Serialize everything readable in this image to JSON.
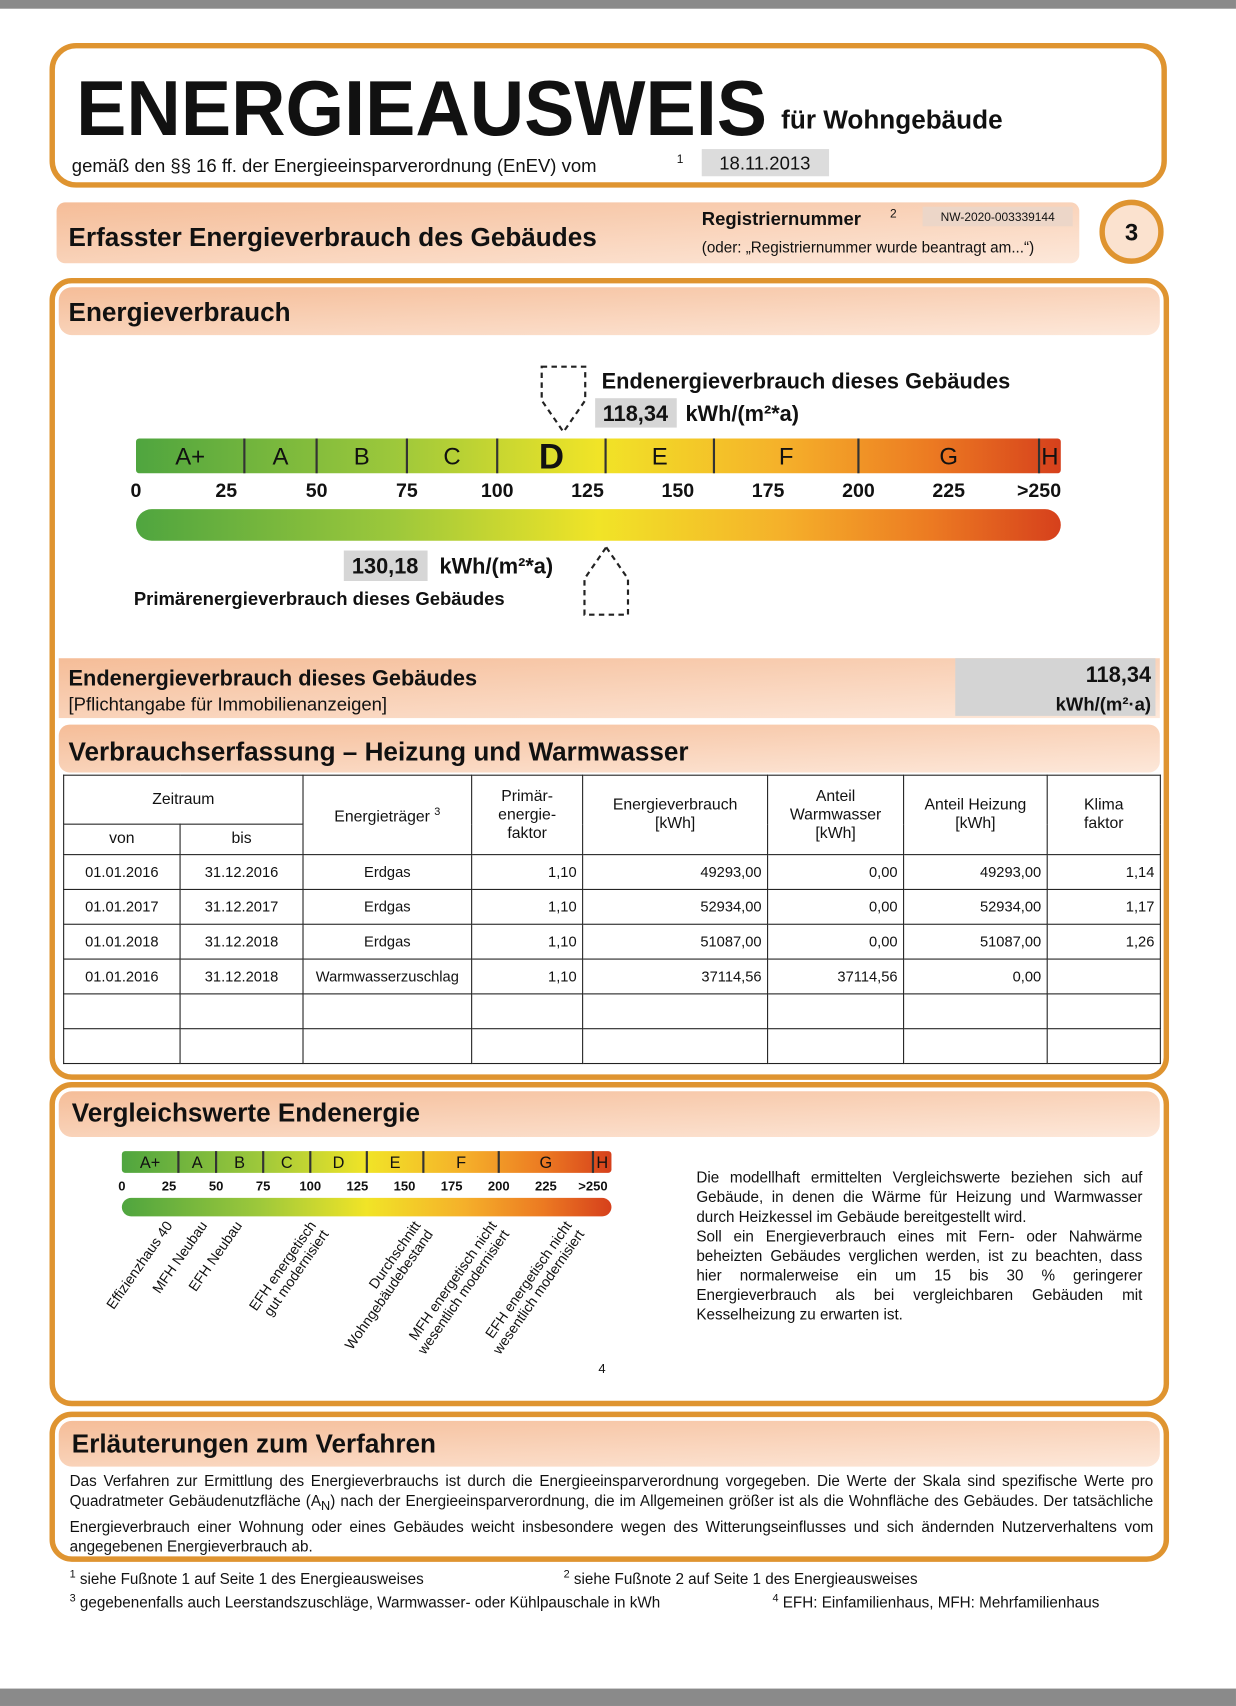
{
  "header": {
    "title": "ENERGIEAUSWEIS",
    "subtitle": "für Wohngebäude",
    "basis": "gemäß den §§ 16 ff. der Energieeinsparverordnung (EnEV) vom",
    "basis_note": "1",
    "date": "18.11.2013"
  },
  "section": {
    "title": "Erfasster Energieverbrauch des Gebäudes",
    "registration_label": "Registriernummer",
    "registration_note": "2",
    "registration_number": "NW-2020-003339144",
    "registration_hint": "(oder: „Registriernummer wurde beantragt am...“)",
    "page": "3"
  },
  "energy": {
    "title": "Energieverbrauch",
    "final_label": "Endenergieverbrauch dieses Gebäudes",
    "final_value": {
      "value": 118.34,
      "label": "118,34"
    },
    "unit": "kWh/(m²*a)",
    "primary_value": {
      "value": 130.18,
      "label": "130,18"
    },
    "primary_label": "Primärenergieverbrauch dieses Gebäudes",
    "classes": [
      "A+",
      "A",
      "B",
      "C",
      "D",
      "E",
      "F",
      "G",
      "H"
    ],
    "class_limits": [
      0,
      30,
      50,
      75,
      100,
      130,
      160,
      200,
      250
    ],
    "scale": [
      0,
      25,
      50,
      75,
      100,
      125,
      150,
      175,
      200,
      225,
      {
        "value": 250,
        "label": ">250"
      }
    ]
  },
  "summary": {
    "label": "Endenergieverbrauch dieses Gebäudes",
    "note": "[Pflichtangabe für Immobilienanzeigen]",
    "value": "118,34",
    "unit": "kWh/(m²·a)"
  },
  "consumption": {
    "title": "Verbrauchserfassung – Heizung und Warmwasser",
    "headers": {
      "period": "Zeitraum",
      "from": "von",
      "to": "bis",
      "carrier": "Energieträger",
      "carrier_note": "3",
      "factor": "Primär-\nenergie-\nfaktor",
      "energy": "Energieverbrauch\n[kWh]",
      "water": "Anteil\nWarmwasser\n[kWh]",
      "heating": "Anteil Heizung\n[kWh]",
      "climate": "Klima\nfaktor"
    },
    "rows": [
      [
        "01.01.2016",
        "31.12.2016",
        "Erdgas",
        "1,10",
        "49293,00",
        "0,00",
        "49293,00",
        "1,14"
      ],
      [
        "01.01.2017",
        "31.12.2017",
        "Erdgas",
        "1,10",
        "52934,00",
        "0,00",
        "52934,00",
        "1,17"
      ],
      [
        "01.01.2018",
        "31.12.2018",
        "Erdgas",
        "1,10",
        "51087,00",
        "0,00",
        "51087,00",
        "1,26"
      ],
      [
        "01.01.2016",
        "31.12.2018",
        "Warmwasserzuschlag",
        "1,10",
        "37114,56",
        "37114,56",
        "0,00"
      ]
    ]
  },
  "comparison": {
    "title": "Vergleichswerte Endenergie",
    "references": [
      "Effizienzhaus 40",
      "MFH Neubau",
      "EFH Neubau",
      "EFH energetisch\ngut modernisiert",
      "Durchschnitt\nWohngebäudebestand",
      "MFH energetisch nicht\nwesentlich modernisiert",
      "EFH energetisch nicht\nwesentlich modernisiert"
    ],
    "note": "4",
    "text": [
      "Die modellhaft ermittelten Vergleichswerte beziehen sich auf Gebäude, in denen die Wärme für Heizung und Warmwasser durch Heizkessel im Gebäude bereitgestellt wird.",
      "Soll ein Energieverbrauch eines mit Fern- oder Nahwärme beheizten Gebäudes verglichen werden, ist zu beachten, dass hier normalerweise ein um 15 bis 30 % geringerer Energieverbrauch als bei vergleichbaren Gebäuden mit Kesselheizung zu erwarten ist."
    ]
  },
  "explanation": {
    "title": "Erläuterungen zum Verfahren",
    "text": [
      "Das Verfahren zur Ermittlung des Energieverbrauchs ist durch die Energieeinsparverordnung vorgegeben. Die Werte der Skala sind spezifische Werte pro Quadratmeter Gebäudenutzfläche (A",
      "N",
      ") nach der Energieeinsparverordnung, die im Allgemeinen größer ist als die Wohnfläche des Gebäudes. Der tatsächliche Energieverbrauch einer Wohnung oder eines Gebäudes weicht insbesondere wegen des Witterungseinflusses und sich ändernden Nutzerverhaltens vom angegebenen Energieverbrauch ab."
    ]
  },
  "footnotes": [
    {
      "mark": "1",
      "text": "siehe Fußnote 1 auf Seite 1 des Energieausweises"
    },
    {
      "mark": "2",
      "text": "siehe Fußnote 2 auf Seite 1 des Energieausweises"
    },
    {
      "mark": "3",
      "text": "gegebenenfalls auch Leerstandszuschläge, Warmwasser- oder Kühlpauschale in kWh"
    },
    {
      "mark": "4",
      "text": "EFH: Einfamilienhaus, MFH: Mehrfamilienhaus"
    }
  ]
}
